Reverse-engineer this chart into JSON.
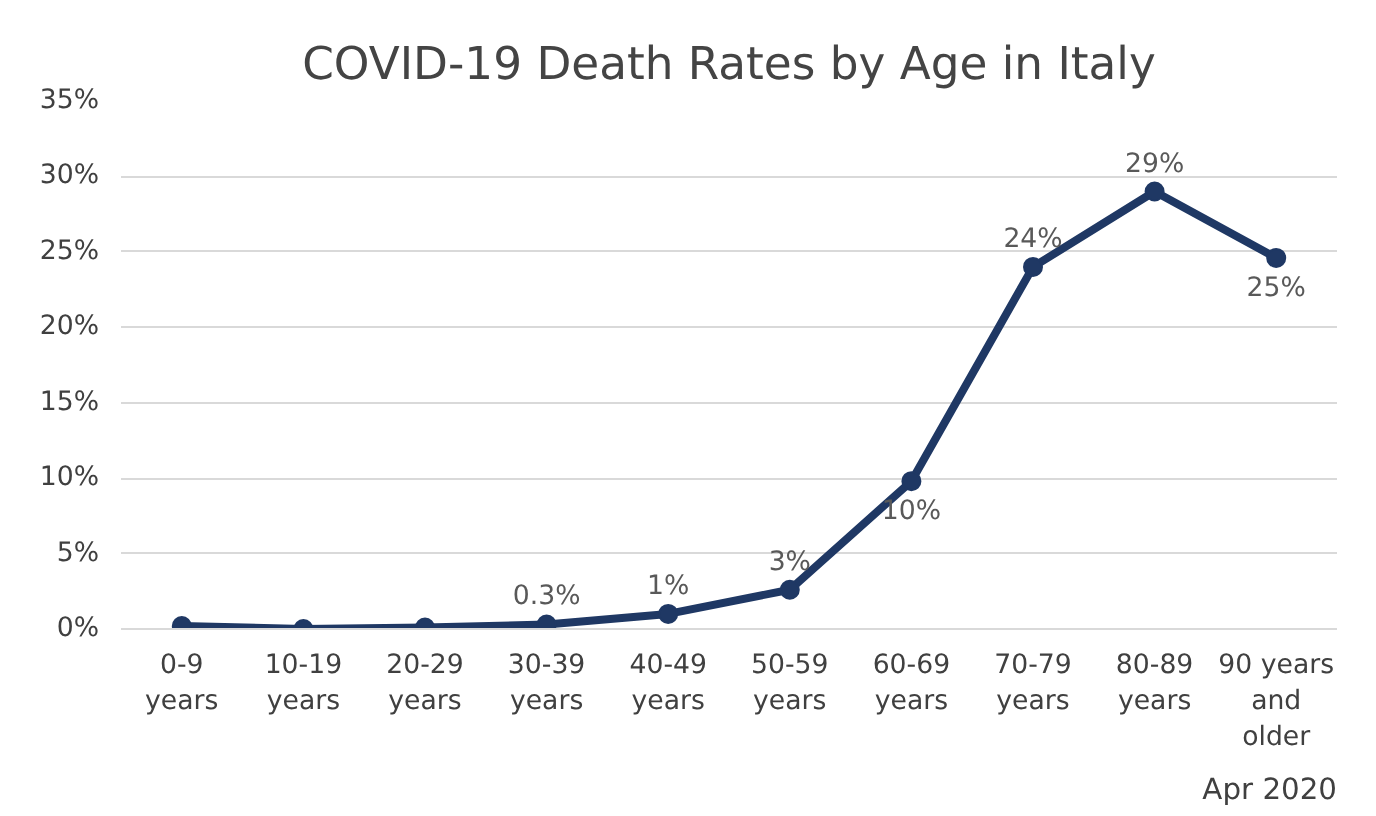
{
  "chart_data": {
    "type": "line",
    "title": "COVID-19 Death Rates by Age in Italy",
    "categories": [
      "0-9\nyears",
      "10-19\nyears",
      "20-29\nyears",
      "30-39\nyears",
      "40-49\nyears",
      "50-59\nyears",
      "60-69\nyears",
      "70-79\nyears",
      "80-89\nyears",
      "90 years\nand\nolder"
    ],
    "series": [
      {
        "color": "#1f3864",
        "values": [
          0.2,
          0.0,
          0.1,
          0.3,
          1,
          2.6,
          9.8,
          24,
          29,
          24.6
        ],
        "value_labels": [
          null,
          null,
          null,
          "0.3%",
          "1%",
          "3%",
          "10%",
          "24%",
          "29%",
          "25%"
        ]
      }
    ],
    "ylim": [
      0,
      35
    ],
    "yticks": [
      {
        "value": 0,
        "label": "0%"
      },
      {
        "value": 5,
        "label": "5%"
      },
      {
        "value": 10,
        "label": "10%"
      },
      {
        "value": 15,
        "label": "15%"
      },
      {
        "value": 20,
        "label": "20%"
      },
      {
        "value": 25,
        "label": "25%"
      },
      {
        "value": 30,
        "label": "30%"
      },
      {
        "value": 35,
        "label": "35%"
      }
    ],
    "grid": "y",
    "marker": "circle",
    "line_style": "solid",
    "annotations": [
      "Apr 2020"
    ]
  }
}
